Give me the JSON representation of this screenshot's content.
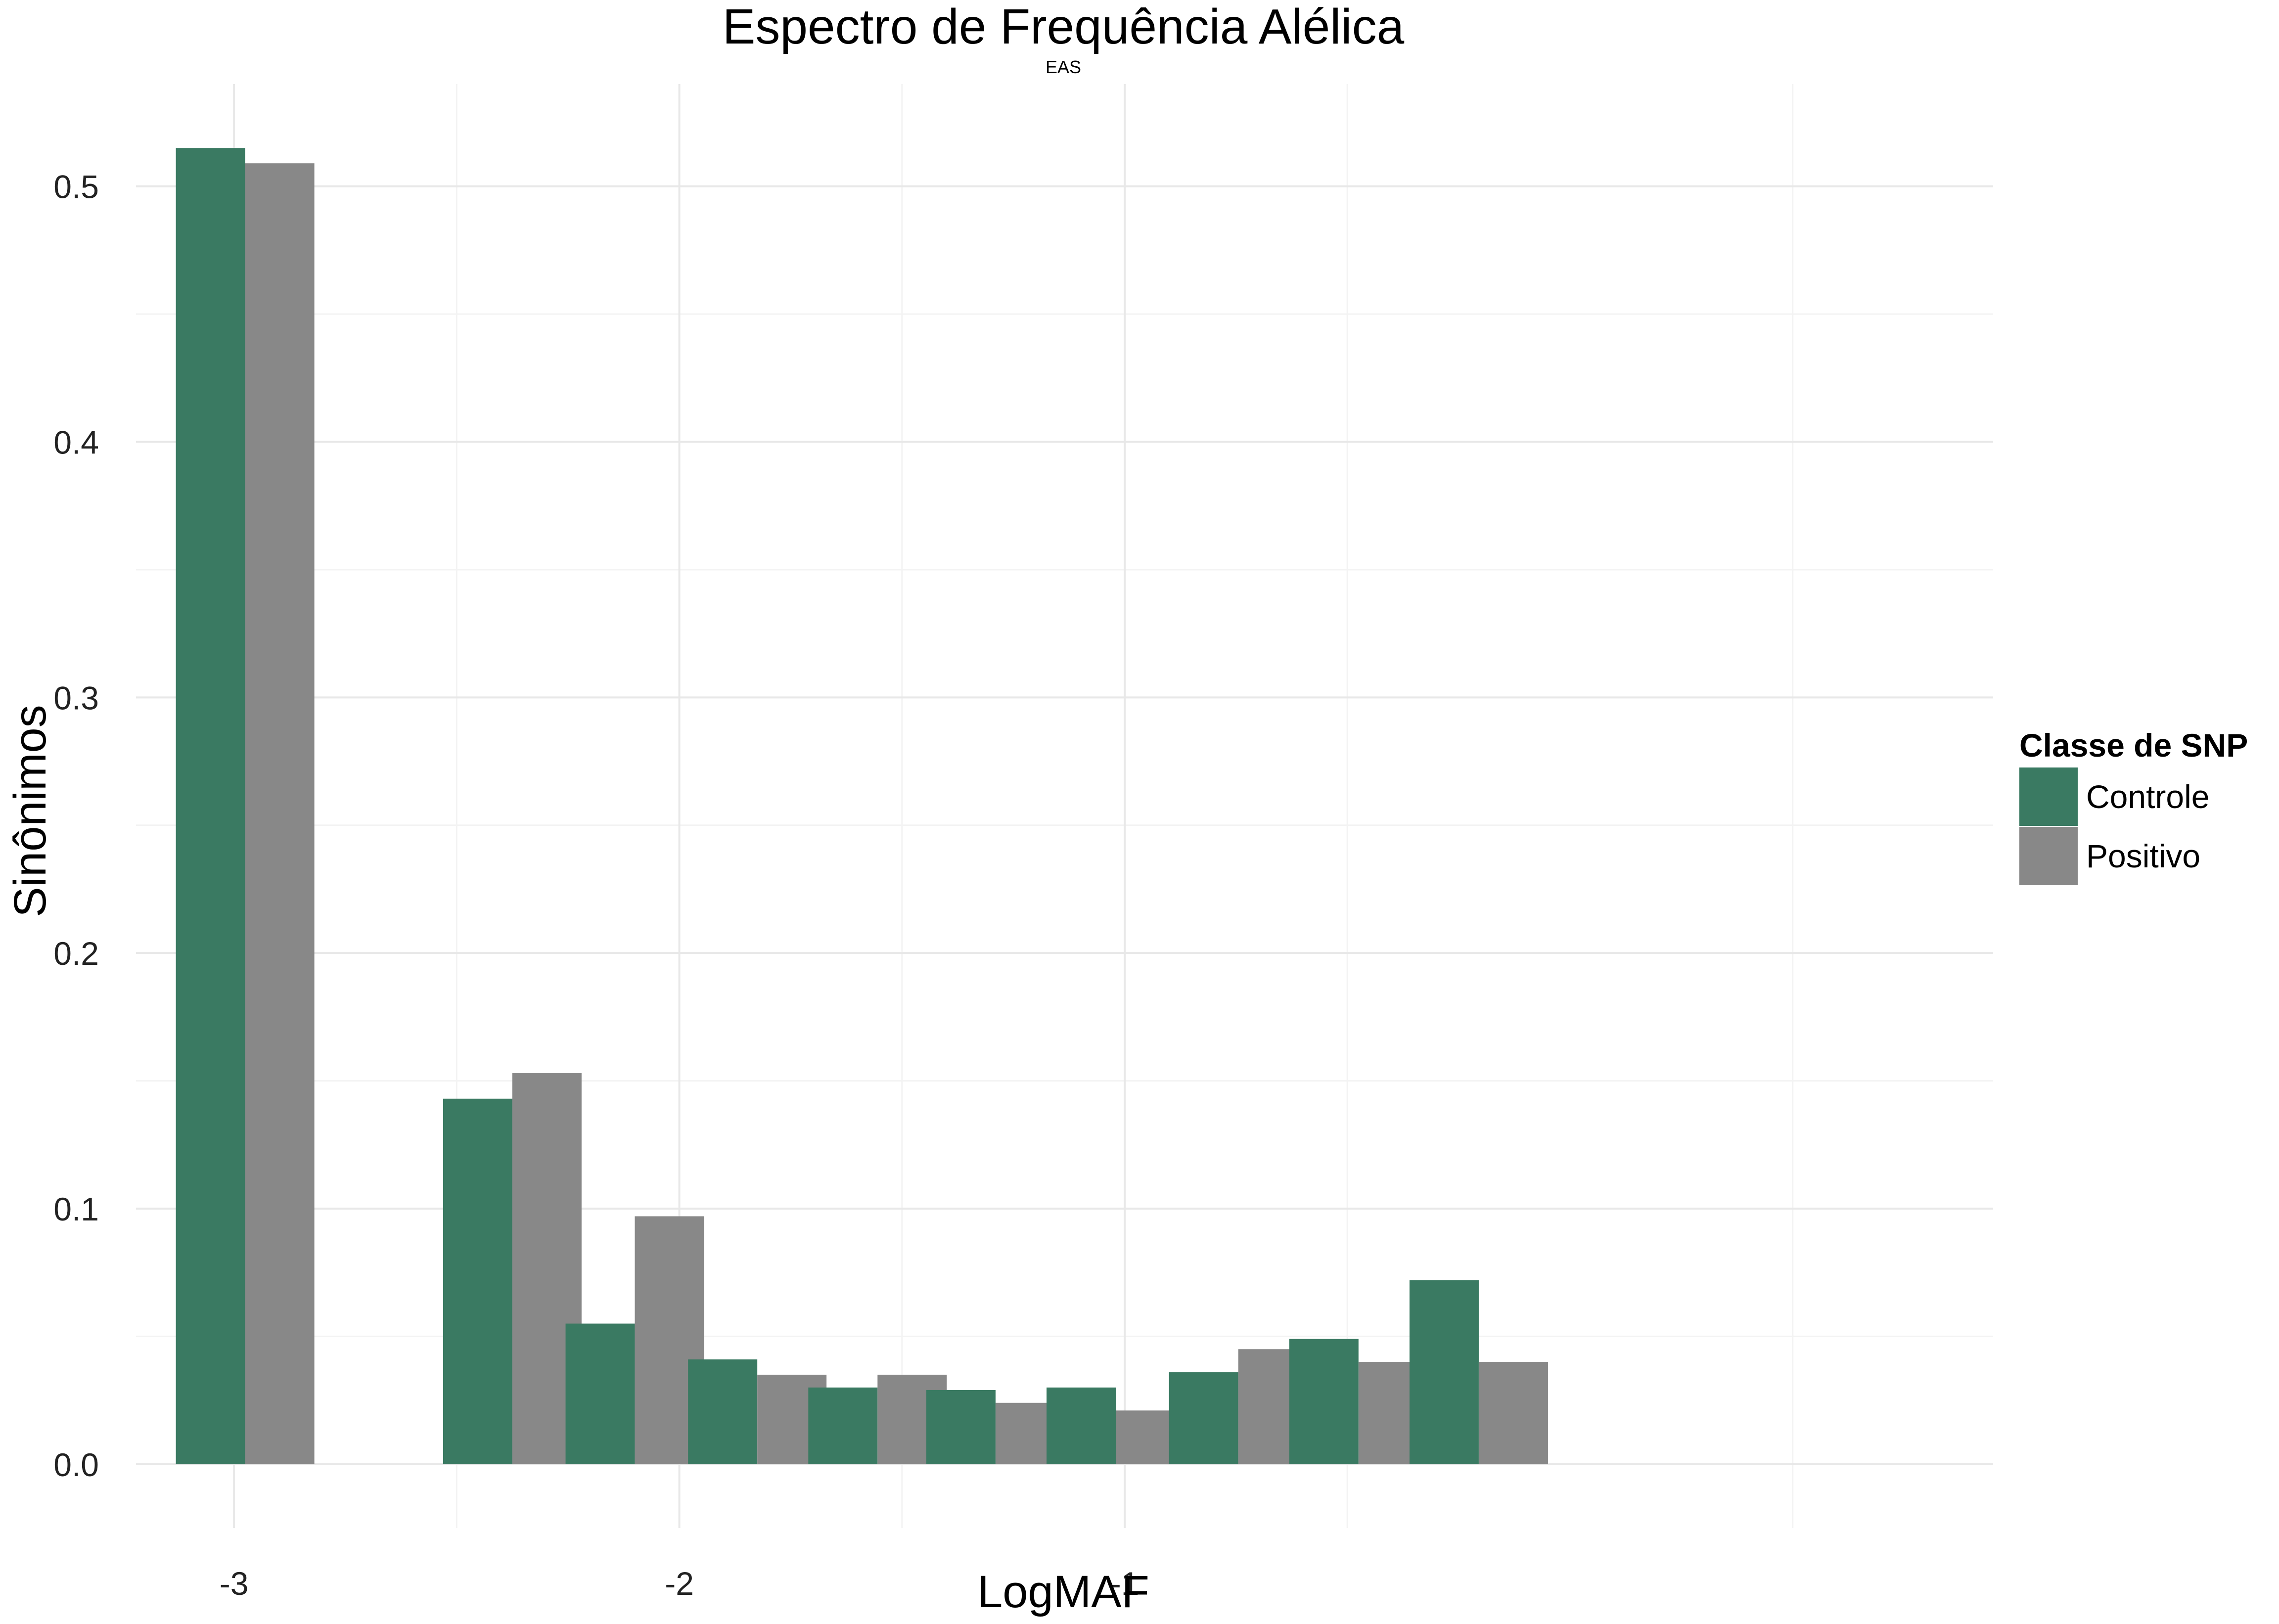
{
  "chart_data": {
    "type": "bar",
    "title": "Espectro de Frequência Alélica",
    "subtitle": "EAS",
    "xlabel": "LogMAF",
    "ylabel": "Sinônimos",
    "x_ticks": [
      -3,
      -2,
      -1
    ],
    "x_tick_labels": [
      "-3",
      "-2",
      "-1"
    ],
    "y_ticks": [
      0.0,
      0.1,
      0.2,
      0.3,
      0.4,
      0.5
    ],
    "y_tick_labels": [
      "0.0",
      "0.1",
      "0.2",
      "0.3",
      "0.4",
      "0.5"
    ],
    "xlim": [
      -3.22,
      0.95
    ],
    "ylim": [
      -0.025,
      0.54
    ],
    "grid": true,
    "legend": {
      "title": "Classe de SNP",
      "position": "right"
    },
    "x": [
      -2.975,
      -2.375,
      -2.1,
      -1.825,
      -1.555,
      -1.29,
      -1.02,
      -0.745,
      -0.475,
      -0.205
    ],
    "series": [
      {
        "name": "Controle",
        "color": "#3a7a62",
        "values": [
          0.515,
          0.143,
          0.055,
          0.041,
          0.03,
          0.029,
          0.03,
          0.036,
          0.049,
          0.072
        ]
      },
      {
        "name": "Positivo",
        "color": "#888888",
        "values": [
          0.509,
          0.153,
          0.097,
          0.035,
          0.035,
          0.024,
          0.021,
          0.045,
          0.04,
          0.04
        ]
      }
    ]
  }
}
